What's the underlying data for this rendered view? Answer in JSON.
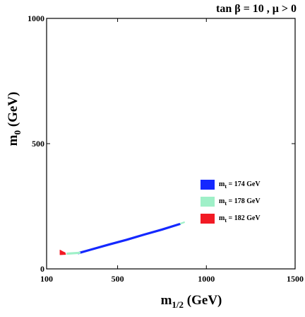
{
  "chart_data": {
    "type": "line",
    "title": "tan β = 10 ,  μ > 0",
    "xlabel": {
      "main": "m",
      "sub": "1/2",
      "rest": " (GeV)"
    },
    "ylabel": {
      "main": "m",
      "sub": "0",
      "rest": " (GeV)"
    },
    "xlim": [
      100,
      1500
    ],
    "ylim": [
      0,
      1000
    ],
    "x_ticks": [
      100,
      500,
      1000,
      1500
    ],
    "x_tick_labels": [
      "100",
      "500",
      "1000",
      "1500"
    ],
    "y_ticks": [
      0,
      500,
      1000
    ],
    "y_tick_labels": [
      "0",
      "500",
      "1000"
    ],
    "grid": false,
    "legend_position": "right, middle",
    "series": [
      {
        "name": "m_t = 174 GeV",
        "legend_main": "m",
        "legend_sub": "t",
        "legend_rest": " = 174 GeV",
        "color": "#1428ff",
        "points": [
          [
            280,
            63
          ],
          [
            350,
            77
          ],
          [
            450,
            97
          ],
          [
            550,
            116
          ],
          [
            650,
            137
          ],
          [
            750,
            157
          ],
          [
            850,
            179
          ]
        ],
        "width_gev": 9
      },
      {
        "name": "m_t = 178 GeV",
        "legend_main": "m",
        "legend_sub": "t",
        "legend_rest": " = 178 GeV",
        "color": "#9ff0c8",
        "points": [
          [
            218,
            61
          ],
          [
            285,
            64
          ]
        ],
        "width_gev": 9,
        "extra_points": [
          [
            855,
            181
          ],
          [
            875,
            186
          ]
        ]
      },
      {
        "name": "m_t = 182 GeV",
        "legend_main": "m",
        "legend_sub": "t",
        "legend_rest": " = 182 GeV",
        "color": "#f21a24",
        "polygon": [
          [
            175,
            56
          ],
          [
            175,
            76
          ],
          [
            193,
            69
          ],
          [
            205,
            65
          ],
          [
            208,
            57
          ]
        ]
      }
    ]
  }
}
